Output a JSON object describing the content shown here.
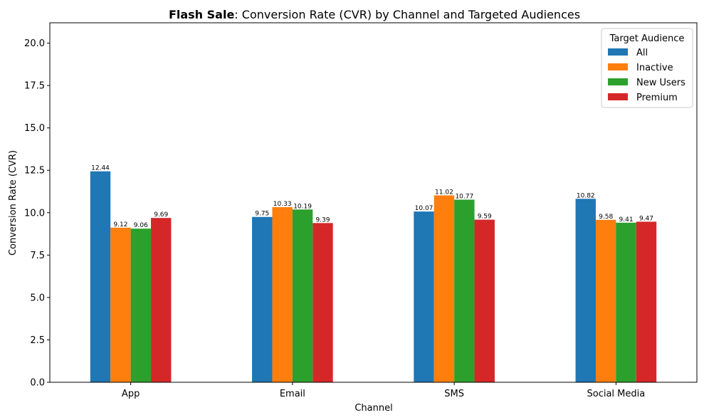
{
  "chart_data": {
    "type": "bar",
    "title_bold": "Flash Sale",
    "title_rest": ": Conversion Rate (CVR) by Channel and Targeted Audiences",
    "xlabel": "Channel",
    "ylabel": "Conversion Rate (CVR)",
    "categories": [
      "App",
      "Email",
      "SMS",
      "Social Media"
    ],
    "ylim": [
      0,
      21.2
    ],
    "yticks": [
      0.0,
      2.5,
      5.0,
      7.5,
      10.0,
      12.5,
      15.0,
      17.5,
      20.0
    ],
    "ytick_labels": [
      "0.0",
      "2.5",
      "5.0",
      "7.5",
      "10.0",
      "12.5",
      "15.0",
      "17.5",
      "20.0"
    ],
    "legend_title": "Target Audience",
    "legend_position": "top-right",
    "grid": false,
    "series": [
      {
        "name": "All",
        "color": "#1f77b4",
        "values": [
          12.44,
          9.75,
          10.07,
          10.82
        ],
        "labels": [
          "12.44",
          "9.75",
          "10.07",
          "10.82"
        ]
      },
      {
        "name": "Inactive",
        "color": "#ff7f0e",
        "values": [
          9.12,
          10.33,
          11.02,
          9.58
        ],
        "labels": [
          "9.12",
          "10.33",
          "11.02",
          "9.58"
        ]
      },
      {
        "name": "New Users",
        "color": "#2ca02c",
        "values": [
          9.06,
          10.19,
          10.77,
          9.41
        ],
        "labels": [
          "9.06",
          "10.19",
          "10.77",
          "9.41"
        ]
      },
      {
        "name": "Premium",
        "color": "#d62728",
        "values": [
          9.69,
          9.39,
          9.59,
          9.47
        ],
        "labels": [
          "9.69",
          "9.39",
          "9.59",
          "9.47"
        ]
      }
    ]
  }
}
